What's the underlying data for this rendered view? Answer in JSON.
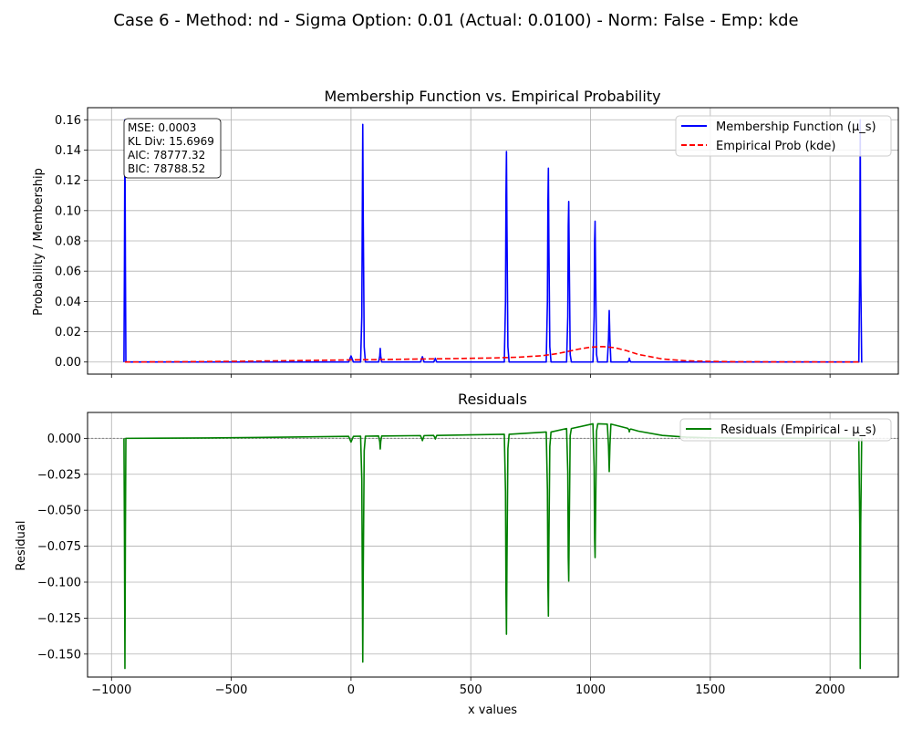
{
  "figure": {
    "suptitle": "Case 6 - Method: nd - Sigma Option: 0.01 (Actual: 0.0100) - Norm: False - Emp: kde"
  },
  "chart_data": [
    {
      "type": "line",
      "title": "Membership Function vs. Empirical Probability",
      "xlabel": "",
      "ylabel": "Probability / Membership",
      "xlim": [
        -1100,
        2285
      ],
      "ylim": [
        -0.008,
        0.168
      ],
      "xticks": [
        -1000,
        -500,
        0,
        500,
        1000,
        1500,
        2000
      ],
      "xtick_labels_shown": false,
      "yticks": [
        0.0,
        0.02,
        0.04,
        0.06,
        0.08,
        0.1,
        0.12,
        0.14,
        0.16
      ],
      "ytick_labels": [
        "0.00",
        "0.02",
        "0.04",
        "0.06",
        "0.08",
        "0.10",
        "0.12",
        "0.14",
        "0.16"
      ],
      "grid": true,
      "legend_position": "upper right",
      "annotation": [
        "MSE: 0.0003",
        "KL Div: 15.6969",
        "AIC: 78777.32",
        "BIC: 78788.52"
      ],
      "series": [
        {
          "name": "Membership Function (μ_s)",
          "color": "#0000ff",
          "style": "solid",
          "x": [
            -948,
            -946,
            -944,
            -942,
            -940,
            -10,
            -5,
            0,
            5,
            10,
            40,
            45,
            47,
            49,
            51,
            55,
            60,
            115,
            120,
            122,
            124,
            128,
            135,
            290,
            295,
            298,
            301,
            305,
            345,
            350,
            352,
            354,
            358,
            640,
            645,
            647,
            649,
            651,
            655,
            660,
            815,
            820,
            822,
            824,
            826,
            830,
            835,
            900,
            905,
            907,
            909,
            911,
            915,
            920,
            1010,
            1015,
            1017,
            1019,
            1021,
            1025,
            1030,
            1070,
            1075,
            1078,
            1081,
            1085,
            1155,
            1160,
            1162,
            1164,
            1168,
            2120,
            2124,
            2126,
            2128,
            2132,
            2135
          ],
          "y": [
            0,
            0.065,
            0.16,
            0.065,
            0,
            0,
            0.002,
            0.004,
            0.002,
            0,
            0,
            0.03,
            0.095,
            0.157,
            0.095,
            0.01,
            0,
            0,
            0.004,
            0.009,
            0.004,
            0,
            0,
            0,
            0.002,
            0.0035,
            0.002,
            0,
            0,
            0.0015,
            0.0025,
            0.0015,
            0,
            0,
            0.04,
            0.11,
            0.139,
            0.09,
            0.01,
            0,
            0,
            0.04,
            0.105,
            0.128,
            0.08,
            0.01,
            0,
            0,
            0.03,
            0.09,
            0.106,
            0.07,
            0.005,
            0,
            0,
            0.03,
            0.08,
            0.093,
            0.06,
            0.005,
            0,
            0,
            0.015,
            0.034,
            0.015,
            0,
            0,
            0.001,
            0.0025,
            0.001,
            0,
            0,
            0.06,
            0.16,
            0.06,
            0,
            0
          ]
        },
        {
          "name": "Empirical Prob (kde)",
          "color": "#ff0000",
          "style": "dashed",
          "x": [
            -944,
            -800,
            -600,
            -400,
            -200,
            0,
            200,
            400,
            600,
            700,
            800,
            860,
            900,
            950,
            1000,
            1050,
            1100,
            1150,
            1200,
            1300,
            1400,
            1500,
            1600,
            1800,
            2000,
            2128
          ],
          "y": [
            0,
            0.0001,
            0.0003,
            0.0006,
            0.001,
            0.0014,
            0.0018,
            0.0022,
            0.0027,
            0.0032,
            0.0042,
            0.0055,
            0.0068,
            0.0085,
            0.0098,
            0.0102,
            0.0095,
            0.0075,
            0.005,
            0.002,
            0.0008,
            0.0004,
            0.0002,
            0.0001,
            5e-05,
            0
          ]
        }
      ]
    },
    {
      "type": "line",
      "title": "Residuals",
      "xlabel": "x values",
      "ylabel": "Residual",
      "xlim": [
        -1100,
        2285
      ],
      "ylim": [
        -0.166,
        0.018
      ],
      "xticks": [
        -1000,
        -500,
        0,
        500,
        1000,
        1500,
        2000
      ],
      "xtick_labels": [
        "−1000",
        "−500",
        "0",
        "500",
        "1000",
        "1500",
        "2000"
      ],
      "yticks": [
        0.0,
        -0.025,
        -0.05,
        -0.075,
        -0.1,
        -0.125,
        -0.15
      ],
      "ytick_labels": [
        "0.000",
        "−0.025",
        "−0.050",
        "−0.075",
        "−0.100",
        "−0.125",
        "−0.150"
      ],
      "grid": true,
      "zero_line": true,
      "legend_position": "upper right",
      "series": [
        {
          "name": "Residuals (Empirical - μ_s)",
          "color": "#008000",
          "style": "solid",
          "x": [
            -948,
            -946,
            -944,
            -942,
            -940,
            -800,
            -600,
            -400,
            -200,
            -10,
            -5,
            0,
            5,
            10,
            40,
            45,
            47,
            49,
            51,
            55,
            60,
            115,
            120,
            122,
            124,
            128,
            135,
            290,
            295,
            298,
            301,
            305,
            345,
            350,
            352,
            354,
            358,
            640,
            645,
            647,
            649,
            651,
            655,
            660,
            815,
            820,
            822,
            824,
            826,
            830,
            835,
            900,
            905,
            907,
            909,
            911,
            915,
            920,
            1010,
            1015,
            1017,
            1019,
            1021,
            1025,
            1030,
            1070,
            1075,
            1078,
            1081,
            1085,
            1155,
            1160,
            1162,
            1164,
            1168,
            1200,
            1300,
            1400,
            1500,
            1600,
            1800,
            2000,
            2120,
            2124,
            2126,
            2128,
            2132,
            2135
          ],
          "y": [
            0,
            -0.065,
            -0.16,
            -0.065,
            0,
            0.0001,
            0.0003,
            0.0006,
            0.001,
            0.0014,
            -0.0006,
            -0.0026,
            -0.0006,
            0.0014,
            0.0015,
            -0.0285,
            -0.0935,
            -0.1555,
            -0.0935,
            -0.0085,
            0.0015,
            0.0016,
            -0.0024,
            -0.0074,
            -0.0024,
            0.0016,
            0.0016,
            0.0019,
            -0.0001,
            -0.0016,
            -0.0001,
            0.0019,
            0.002,
            0.0005,
            -0.0005,
            0.0005,
            0.002,
            0.0028,
            -0.0372,
            -0.1072,
            -0.1362,
            -0.0872,
            -0.0072,
            0.0028,
            0.0044,
            -0.0356,
            -0.1006,
            -0.1236,
            -0.0756,
            -0.0056,
            0.0044,
            0.0068,
            -0.0232,
            -0.0832,
            -0.0992,
            -0.0632,
            0.0018,
            0.0068,
            0.0101,
            -0.0199,
            -0.0699,
            -0.0829,
            -0.0529,
            0.0051,
            0.0101,
            0.0099,
            -0.0051,
            -0.0231,
            -0.0051,
            0.0099,
            0.007,
            0.006,
            0.0045,
            0.006,
            0.0065,
            0.005,
            0.002,
            0.0008,
            0.0004,
            0.0002,
            0.0001,
            5e-05,
            0,
            -0.06,
            -0.16,
            -0.06,
            0,
            0
          ]
        }
      ]
    }
  ]
}
